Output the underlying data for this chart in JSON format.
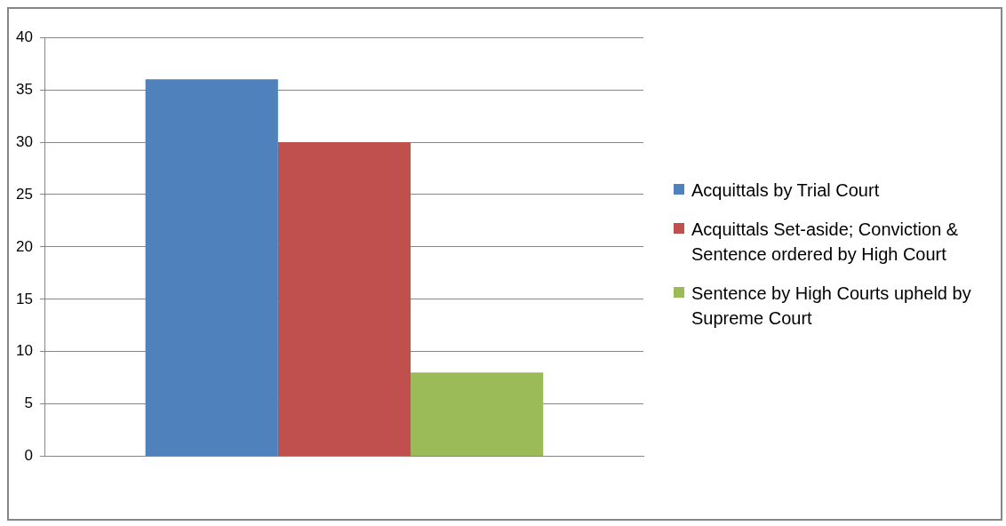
{
  "chart_data": {
    "type": "bar",
    "categories": [
      null
    ],
    "series": [
      {
        "name": "Acquittals by Trial Court",
        "color": "#4f81bd",
        "values": [
          36
        ]
      },
      {
        "name": "Acquittals Set-aside; Conviction & Sentence ordered by High Court",
        "color": "#c0504d",
        "values": [
          30
        ]
      },
      {
        "name": "Sentence by High Courts upheld by Supreme Court",
        "color": "#9bbb59",
        "values": [
          8
        ]
      }
    ],
    "ylim": [
      0,
      40
    ],
    "yticks": [
      0,
      5,
      10,
      15,
      20,
      25,
      30,
      35,
      40
    ],
    "grid": "y",
    "legend": "right"
  }
}
